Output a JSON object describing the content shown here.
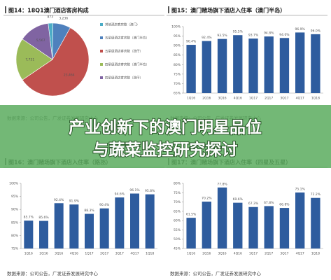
{
  "banner": {
    "lines": [
      "产业创新下的澳门明星品位",
      "与蔬菜监控研究探讨"
    ]
  },
  "chart_data": [
    {
      "type": "pie",
      "title": "图14：18Q1澳门酒店客房构成",
      "categories": [
        "其他酒店客房数（澳门）",
        "五星级酒店客房数（澳门半岛）",
        "五星级酒店客房数（氹仔）",
        "四星级酒店客房数（澳门半岛）",
        "四星级酒店客房数（氹仔）"
      ],
      "values": [
        873,
        3236,
        23464,
        7751,
        5567
      ],
      "value_labels": [
        "873",
        "3,236",
        "23,464",
        "7,751",
        "5,567"
      ],
      "colors": [
        "#4bacc6",
        "#4f81bd",
        "#c0504d",
        "#9bbb59",
        "#8064a2"
      ],
      "source": "数据来源：公司公告，广发证券发展研究中心"
    },
    {
      "type": "bar",
      "title": "图15：澳门赌场旗下酒店入住率（澳门半岛）",
      "categories": [
        "1Q16",
        "2Q16",
        "3Q16",
        "4Q16",
        "1Q17",
        "2Q17",
        "3Q17",
        "4Q17",
        "1Q18"
      ],
      "values": [
        90.4,
        92.4,
        93.5,
        95.5,
        93.7,
        94.8,
        94.0,
        96.9,
        96.0
      ],
      "value_labels": [
        "90.4%",
        "92.4%",
        "93.5%",
        "95.5%",
        "93.7%",
        "94.8%",
        "94.0%",
        "96.9%",
        "96.0%"
      ],
      "color": "#2e5c9e",
      "grid": false,
      "ylim": [
        65,
        100
      ],
      "yticks": [
        {
          "value": 65,
          "label": "65%"
        },
        {
          "value": 70,
          "label": "70%"
        },
        {
          "value": 75,
          "label": "75%"
        },
        {
          "value": 80,
          "label": "80%"
        },
        {
          "value": 85,
          "label": "85%"
        },
        {
          "value": 90,
          "label": "90%"
        },
        {
          "value": 95,
          "label": "95%"
        },
        {
          "value": 100,
          "label": "100%"
        }
      ],
      "source": "数据来源：公司公告，广发证券发展研究中心"
    },
    {
      "type": "bar",
      "title": "图16：澳门赌场旗下酒店入住率（路氹）",
      "categories": [
        "1Q16",
        "2Q16",
        "3Q16",
        "4Q16",
        "1Q17",
        "2Q17",
        "3Q17",
        "4Q17",
        "1Q18"
      ],
      "values": [
        85.7,
        85.6,
        92.4,
        91.9,
        88.3,
        90.4,
        94.6,
        96.1,
        95.8
      ],
      "value_labels": [
        "85.7%",
        "85.6%",
        "92.4%",
        "91.9%",
        "88.3%",
        "90.4%",
        "94.6%",
        "96.1%",
        "95.8%"
      ],
      "color": "#2e5c9e",
      "grid": false,
      "ylim": [
        75,
        100
      ],
      "yticks": [
        {
          "value": 75,
          "label": "75%"
        },
        {
          "value": 80,
          "label": "80%"
        },
        {
          "value": 85,
          "label": "85%"
        },
        {
          "value": 90,
          "label": "90%"
        },
        {
          "value": 95,
          "label": "95%"
        },
        {
          "value": 100,
          "label": "100%"
        }
      ],
      "source": "数据来源：公司公告，广发证券发展研究中心"
    },
    {
      "type": "bar",
      "title": "图17：澳门赌场旗下酒店入住率（四星及五星）",
      "categories": [
        "1Q16",
        "2Q16",
        "3Q16",
        "4Q16",
        "1Q17",
        "2Q17",
        "3Q17",
        "4Q17",
        "1Q18"
      ],
      "values": [
        61.5,
        70.2,
        77.8,
        69.6,
        67.3,
        67.8,
        66.8,
        75.1,
        72.2
      ],
      "value_labels": [
        "61.5%",
        "70.2%",
        "77.8%",
        "69.6%",
        "67.3%",
        "67.8%",
        "66.8%",
        "75.1%",
        "72.2%"
      ],
      "color": "#2e5c9e",
      "grid": false,
      "ylim": [
        45,
        80
      ],
      "yticks": [
        {
          "value": 45,
          "label": "45%"
        },
        {
          "value": 50,
          "label": "50%"
        },
        {
          "value": 55,
          "label": "55%"
        },
        {
          "value": 60,
          "label": "60%"
        },
        {
          "value": 65,
          "label": "65%"
        },
        {
          "value": 70,
          "label": "70%"
        },
        {
          "value": 75,
          "label": "75%"
        },
        {
          "value": 80,
          "label": "80%"
        }
      ],
      "source": "数据来源：公司公告，广发证券发展研究中心"
    }
  ]
}
